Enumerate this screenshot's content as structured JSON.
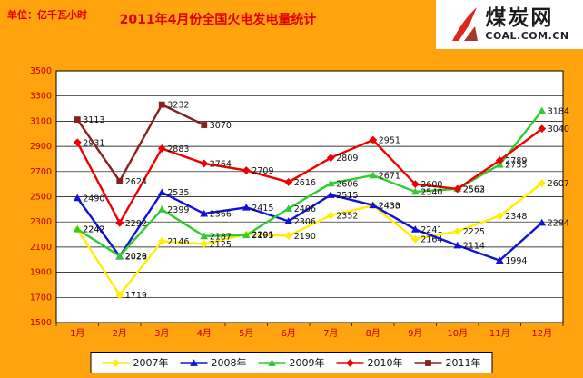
{
  "header": {
    "unit_label": "单位：亿千瓦小时",
    "title": "2011年4月份全国火电发电量统计"
  },
  "logo": {
    "name": "煤炭网",
    "domain": "COAL.COM.CN",
    "accent_color": "#D8291B"
  },
  "colors": {
    "frame_background": "#FFA30F",
    "plot_background": "#FFFFFF",
    "axis_label": "#C00000",
    "title_text": "#E00000",
    "data_label": "#111111"
  },
  "chart_data": {
    "type": "line",
    "title": "2011年4月份全国火电发电量统计",
    "unit": "亿千瓦小时",
    "categories": [
      "1月",
      "2月",
      "3月",
      "4月",
      "5月",
      "6月",
      "7月",
      "8月",
      "9月",
      "10月",
      "11月",
      "12月"
    ],
    "ylim": [
      1500,
      3500
    ],
    "ytick_step": 200,
    "ytick_labels": [
      1500,
      1700,
      1900,
      2100,
      2300,
      2500,
      2700,
      2900,
      3100,
      3300,
      3500
    ],
    "grid": true,
    "legend_position": "bottom",
    "series": [
      {
        "name": "2007年",
        "color": "#FFEE00",
        "marker": "diamond",
        "values": [
          2242,
          1719,
          2146,
          2125,
          2201,
          2190,
          2352,
          2430,
          2164,
          2225,
          2348,
          2607
        ]
      },
      {
        "name": "2008年",
        "color": "#1212D6",
        "marker": "triangle",
        "values": [
          2490,
          2026,
          2535,
          2366,
          2415,
          2306,
          2515,
          2433,
          2241,
          2114,
          1994,
          2294
        ]
      },
      {
        "name": "2009年",
        "color": "#2FCC2F",
        "marker": "triangle",
        "values": [
          2242,
          2029,
          2399,
          2187,
          2195,
          2406,
          2606,
          2671,
          2540,
          2563,
          2755,
          3184
        ]
      },
      {
        "name": "2010年",
        "color": "#EE0000",
        "marker": "diamond",
        "values": [
          2931,
          2292,
          2883,
          2764,
          2709,
          2616,
          2809,
          2951,
          2600,
          2562,
          2789,
          3040
        ]
      },
      {
        "name": "2011年",
        "color": "#8B1E1E",
        "marker": "square",
        "values": [
          3113,
          2624,
          3232,
          3070,
          null,
          null,
          null,
          null,
          null,
          null,
          null,
          null
        ]
      }
    ]
  }
}
